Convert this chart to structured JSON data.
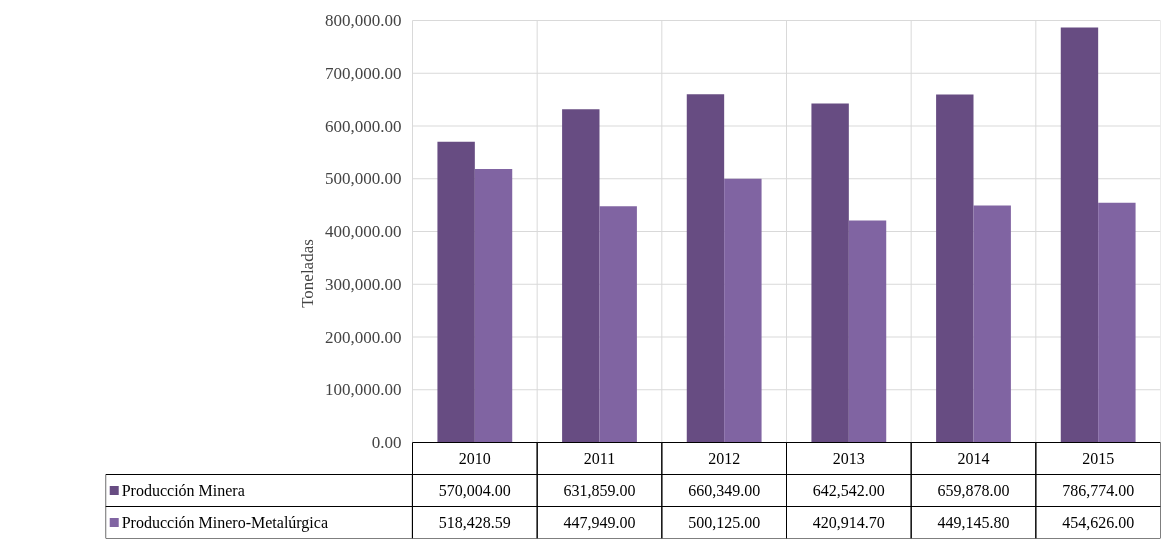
{
  "chart_data": {
    "type": "bar",
    "ylabel": "Toneladas",
    "categories": [
      "2010",
      "2011",
      "2012",
      "2013",
      "2014",
      "2015"
    ],
    "series": [
      {
        "name": "Producción Minera",
        "color": "#674c82",
        "values": [
          570004.0,
          631859.0,
          660349.0,
          642542.0,
          659878.0,
          786774.0
        ],
        "value_labels": [
          "570,004.00",
          "631,859.00",
          "660,349.00",
          "642,542.00",
          "659,878.00",
          "786,774.00"
        ]
      },
      {
        "name": "Producción Minero-Metalúrgica",
        "color": "#8064a2",
        "values": [
          518428.59,
          447949.0,
          500125.0,
          420914.7,
          449145.8,
          454626.0
        ],
        "value_labels": [
          "518,428.59",
          "447,949.00",
          "500,125.00",
          "420,914.70",
          "449,145.80",
          "454,626.00"
        ]
      }
    ],
    "ylim": [
      0,
      800000
    ],
    "yticks": [
      {
        "value": 0,
        "label": "0.00"
      },
      {
        "value": 100000,
        "label": "100,000.00"
      },
      {
        "value": 200000,
        "label": "200,000.00"
      },
      {
        "value": 300000,
        "label": "300,000.00"
      },
      {
        "value": 400000,
        "label": "400,000.00"
      },
      {
        "value": 500000,
        "label": "500,000.00"
      },
      {
        "value": 600000,
        "label": "600,000.00"
      },
      {
        "value": 700000,
        "label": "700,000.00"
      },
      {
        "value": 800000,
        "label": "800,000.00"
      }
    ],
    "grid": true,
    "legend": "bottom"
  }
}
